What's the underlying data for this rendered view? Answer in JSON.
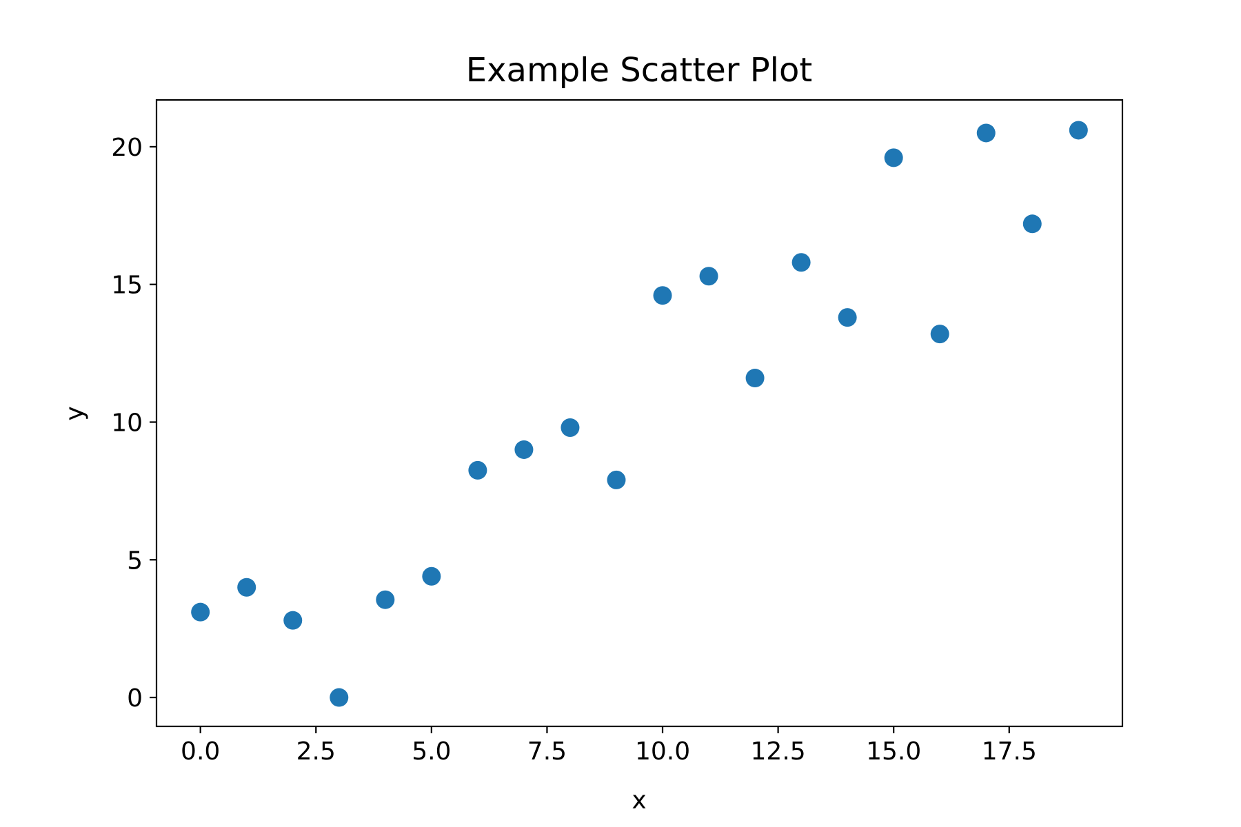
{
  "chart_data": {
    "type": "scatter",
    "title": "Example Scatter Plot",
    "xlabel": "x",
    "ylabel": "y",
    "xlim": [
      -0.95,
      19.95
    ],
    "ylim": [
      -1.05,
      21.7
    ],
    "xticks": [
      0.0,
      2.5,
      5.0,
      7.5,
      10.0,
      12.5,
      15.0,
      17.5
    ],
    "xtick_labels": [
      "0.0",
      "2.5",
      "5.0",
      "7.5",
      "10.0",
      "12.5",
      "15.0",
      "17.5"
    ],
    "yticks": [
      0,
      5,
      10,
      15,
      20
    ],
    "ytick_labels": [
      "0",
      "5",
      "10",
      "15",
      "20"
    ],
    "grid": false,
    "series": [
      {
        "color": "#1f77b4",
        "x": [
          0,
          1,
          2,
          3,
          4,
          5,
          6,
          7,
          8,
          9,
          10,
          11,
          12,
          13,
          14,
          15,
          16,
          17,
          18,
          19
        ],
        "y": [
          3.1,
          4.0,
          2.8,
          0.0,
          3.55,
          4.4,
          8.25,
          9.0,
          9.8,
          7.9,
          14.6,
          15.3,
          11.6,
          15.8,
          13.8,
          19.6,
          13.2,
          20.5,
          17.2,
          20.6
        ]
      }
    ]
  }
}
